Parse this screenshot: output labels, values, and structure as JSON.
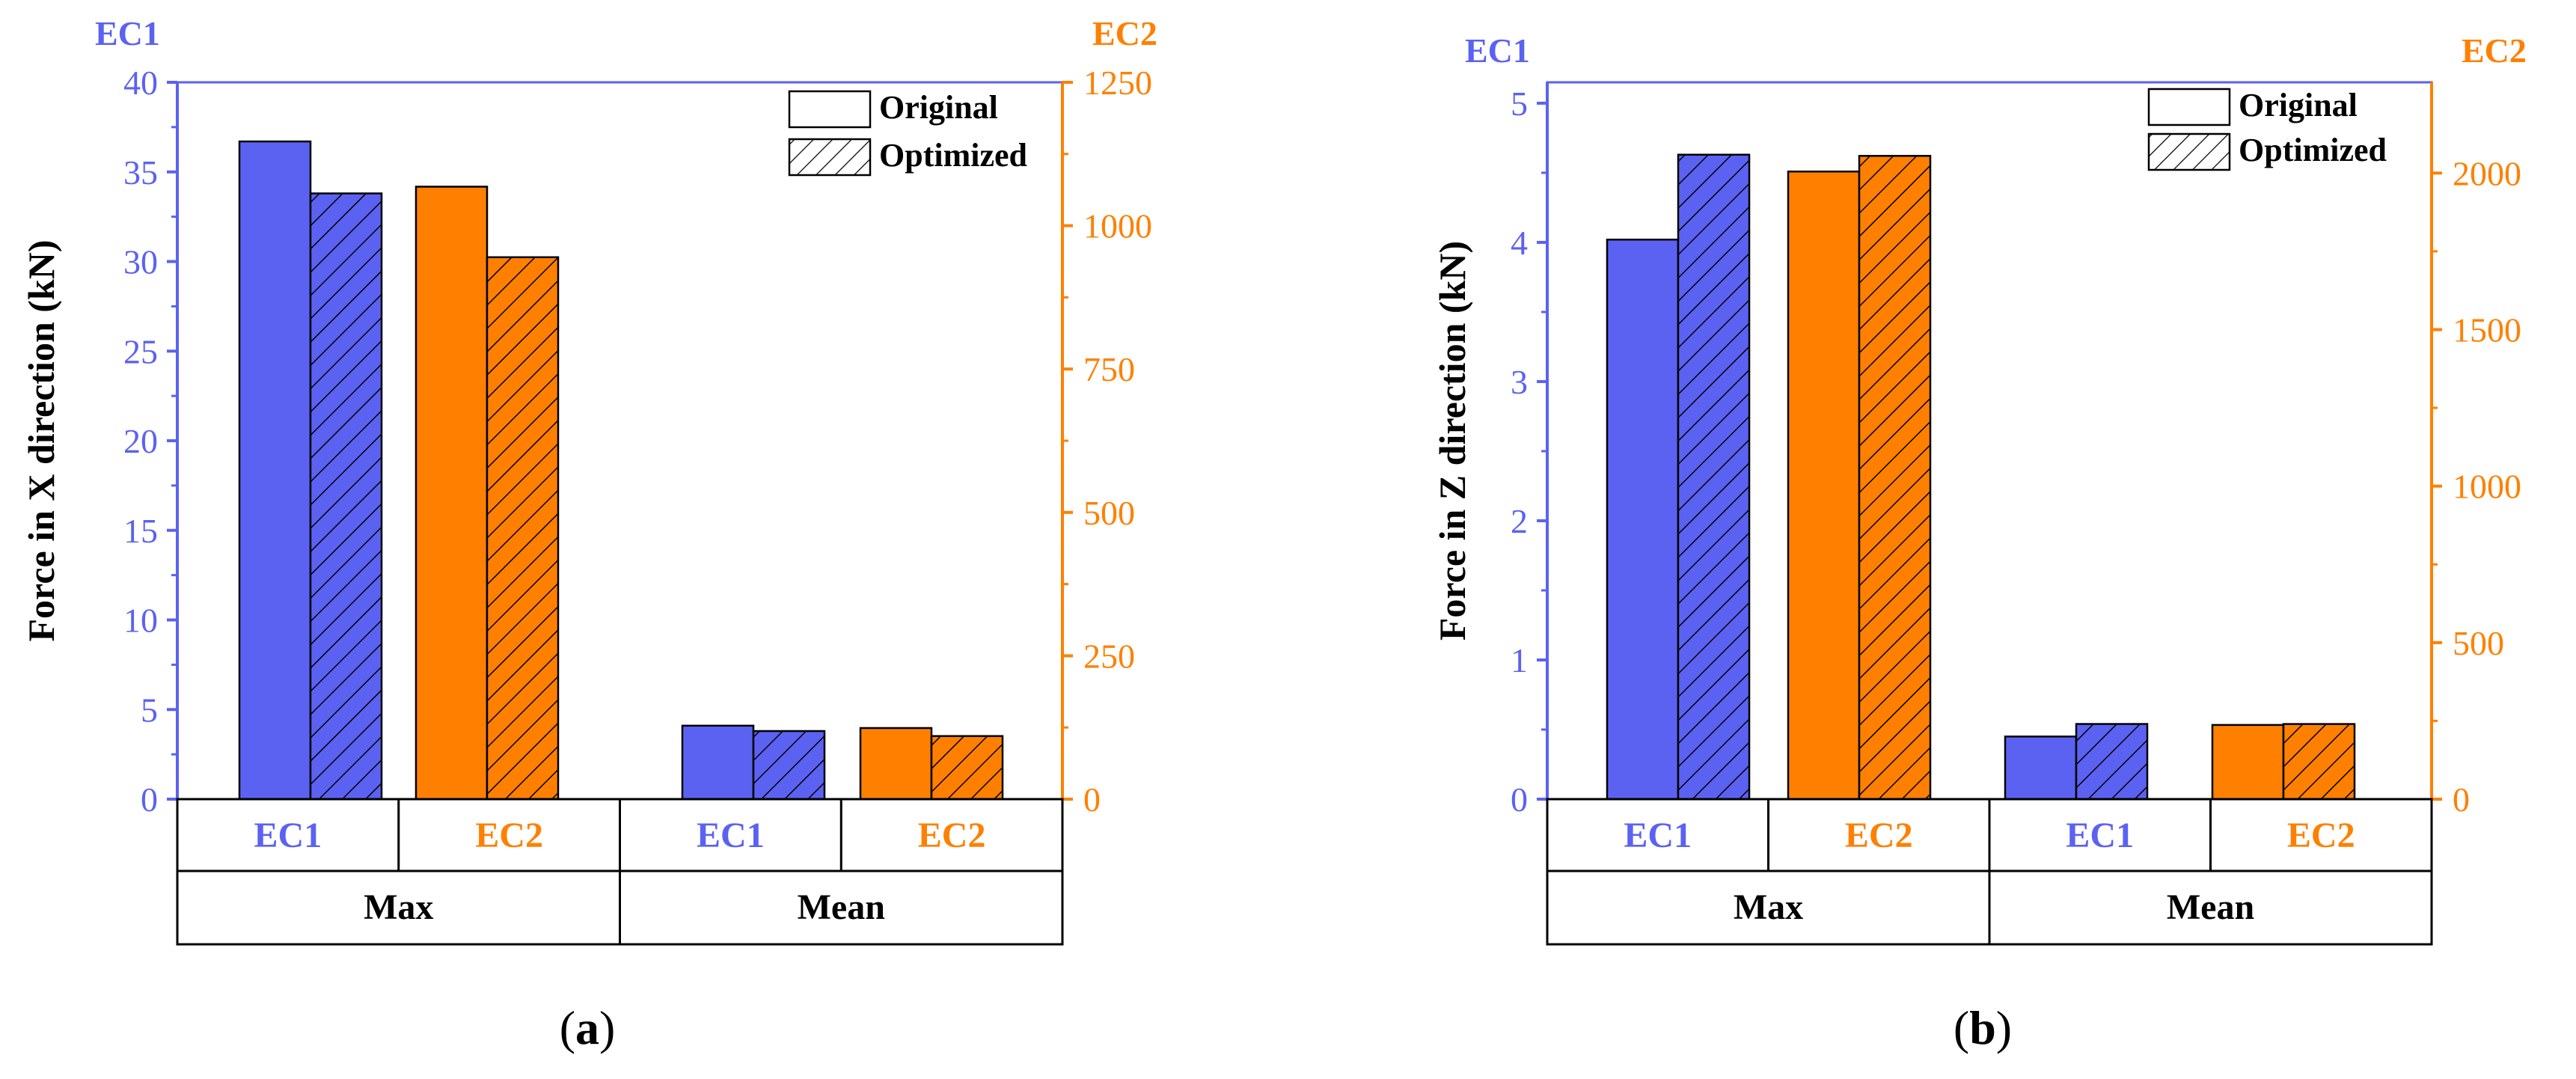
{
  "colors": {
    "ec1": "#5B62F2",
    "ec2": "#FF8000",
    "axis": "#000000",
    "background": "#ffffff"
  },
  "chart_data": [
    {
      "type": "bar",
      "id": "a",
      "caption": "(a)",
      "caption_letter": "a",
      "ylabel": "Force in X direction (kN)",
      "left_axis_title": "EC1",
      "right_axis_title": "EC2",
      "left_ylim": [
        0,
        40
      ],
      "left_ticks": [
        0,
        5,
        10,
        15,
        20,
        25,
        30,
        35,
        40
      ],
      "right_ylim": [
        0,
        1250
      ],
      "right_ticks": [
        0,
        250,
        500,
        750,
        1000,
        1250
      ],
      "legend": {
        "position": "top-right",
        "entries": [
          "Original",
          "Optimized"
        ]
      },
      "groups": [
        {
          "label": "Max",
          "subgroups": [
            {
              "label": "EC1",
              "axis": "left",
              "original": 36.7,
              "optimized": 33.8
            },
            {
              "label": "EC2",
              "axis": "right",
              "original": 1068,
              "optimized": 945
            }
          ]
        },
        {
          "label": "Mean",
          "subgroups": [
            {
              "label": "EC1",
              "axis": "left",
              "original": 4.1,
              "optimized": 3.8
            },
            {
              "label": "EC2",
              "axis": "right",
              "original": 124,
              "optimized": 110
            }
          ]
        }
      ]
    },
    {
      "type": "bar",
      "id": "b",
      "caption": "(b)",
      "caption_letter": "b",
      "ylabel": "Force in Z direction (kN)",
      "left_axis_title": "EC1",
      "right_axis_title": "EC2",
      "left_ylim": [
        0,
        5.15
      ],
      "left_ticks": [
        0,
        1,
        2,
        3,
        4,
        5
      ],
      "right_ylim": [
        0,
        2290
      ],
      "right_ticks": [
        0,
        500,
        1000,
        1500,
        2000
      ],
      "legend": {
        "position": "top-right",
        "entries": [
          "Original",
          "Optimized"
        ]
      },
      "groups": [
        {
          "label": "Max",
          "subgroups": [
            {
              "label": "EC1",
              "axis": "left",
              "original": 4.02,
              "optimized": 4.63
            },
            {
              "label": "EC2",
              "axis": "right",
              "original": 2005,
              "optimized": 2055
            }
          ]
        },
        {
          "label": "Mean",
          "subgroups": [
            {
              "label": "EC1",
              "axis": "left",
              "original": 0.45,
              "optimized": 0.54
            },
            {
              "label": "EC2",
              "axis": "right",
              "original": 237,
              "optimized": 240
            }
          ]
        }
      ]
    }
  ]
}
